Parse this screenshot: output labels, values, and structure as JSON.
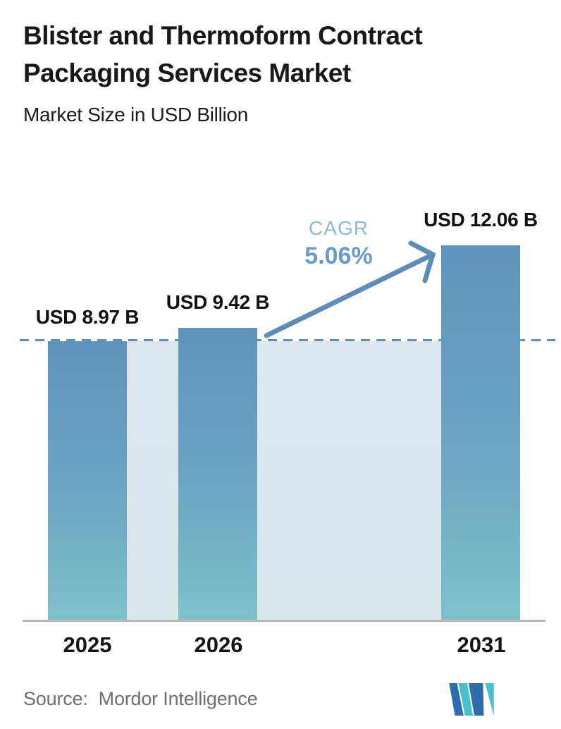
{
  "header": {
    "title_line1": "Blister and Thermoform Contract",
    "title_line2": "Packaging Services Market",
    "subtitle": "Market Size in USD Billion"
  },
  "chart_data": {
    "type": "bar",
    "title": "Blister and Thermoform Contract Packaging Services Market",
    "subtitle": "Market Size in USD Billion",
    "unit": "USD Billion",
    "categories": [
      "2025",
      "2026",
      "2031"
    ],
    "values": [
      8.97,
      9.42,
      12.06
    ],
    "value_labels": [
      "USD 8.97 B",
      "USD 9.42 B",
      "USD 12.06 B"
    ],
    "ylim": [
      0,
      12.06
    ],
    "grid": false,
    "legend": false,
    "annotations": {
      "cagr_label": "CAGR",
      "cagr_value": "5.06%",
      "arrow_from_category": "2026",
      "arrow_to_category": "2031",
      "dashed_reference_line_value": 8.97
    },
    "colors": {
      "bar_gradient_top": "#5f93bd",
      "bar_gradient_bottom": "#7fc1c9",
      "background_band": "#dde7f0",
      "dashed_line": "#5e90ba",
      "arrow": "#5d8cb7",
      "cagr_label_text": "#8fb7d8",
      "cagr_value_text": "#6b9ac6",
      "baseline": "#b5b9bb"
    }
  },
  "footer": {
    "source_label": "Source:",
    "source_value": "Mordor Intelligence",
    "logo": "mordor-intelligence-logo",
    "logo_colors": {
      "dark_blue": "#2e6dab",
      "teal": "#49bfcd"
    }
  }
}
